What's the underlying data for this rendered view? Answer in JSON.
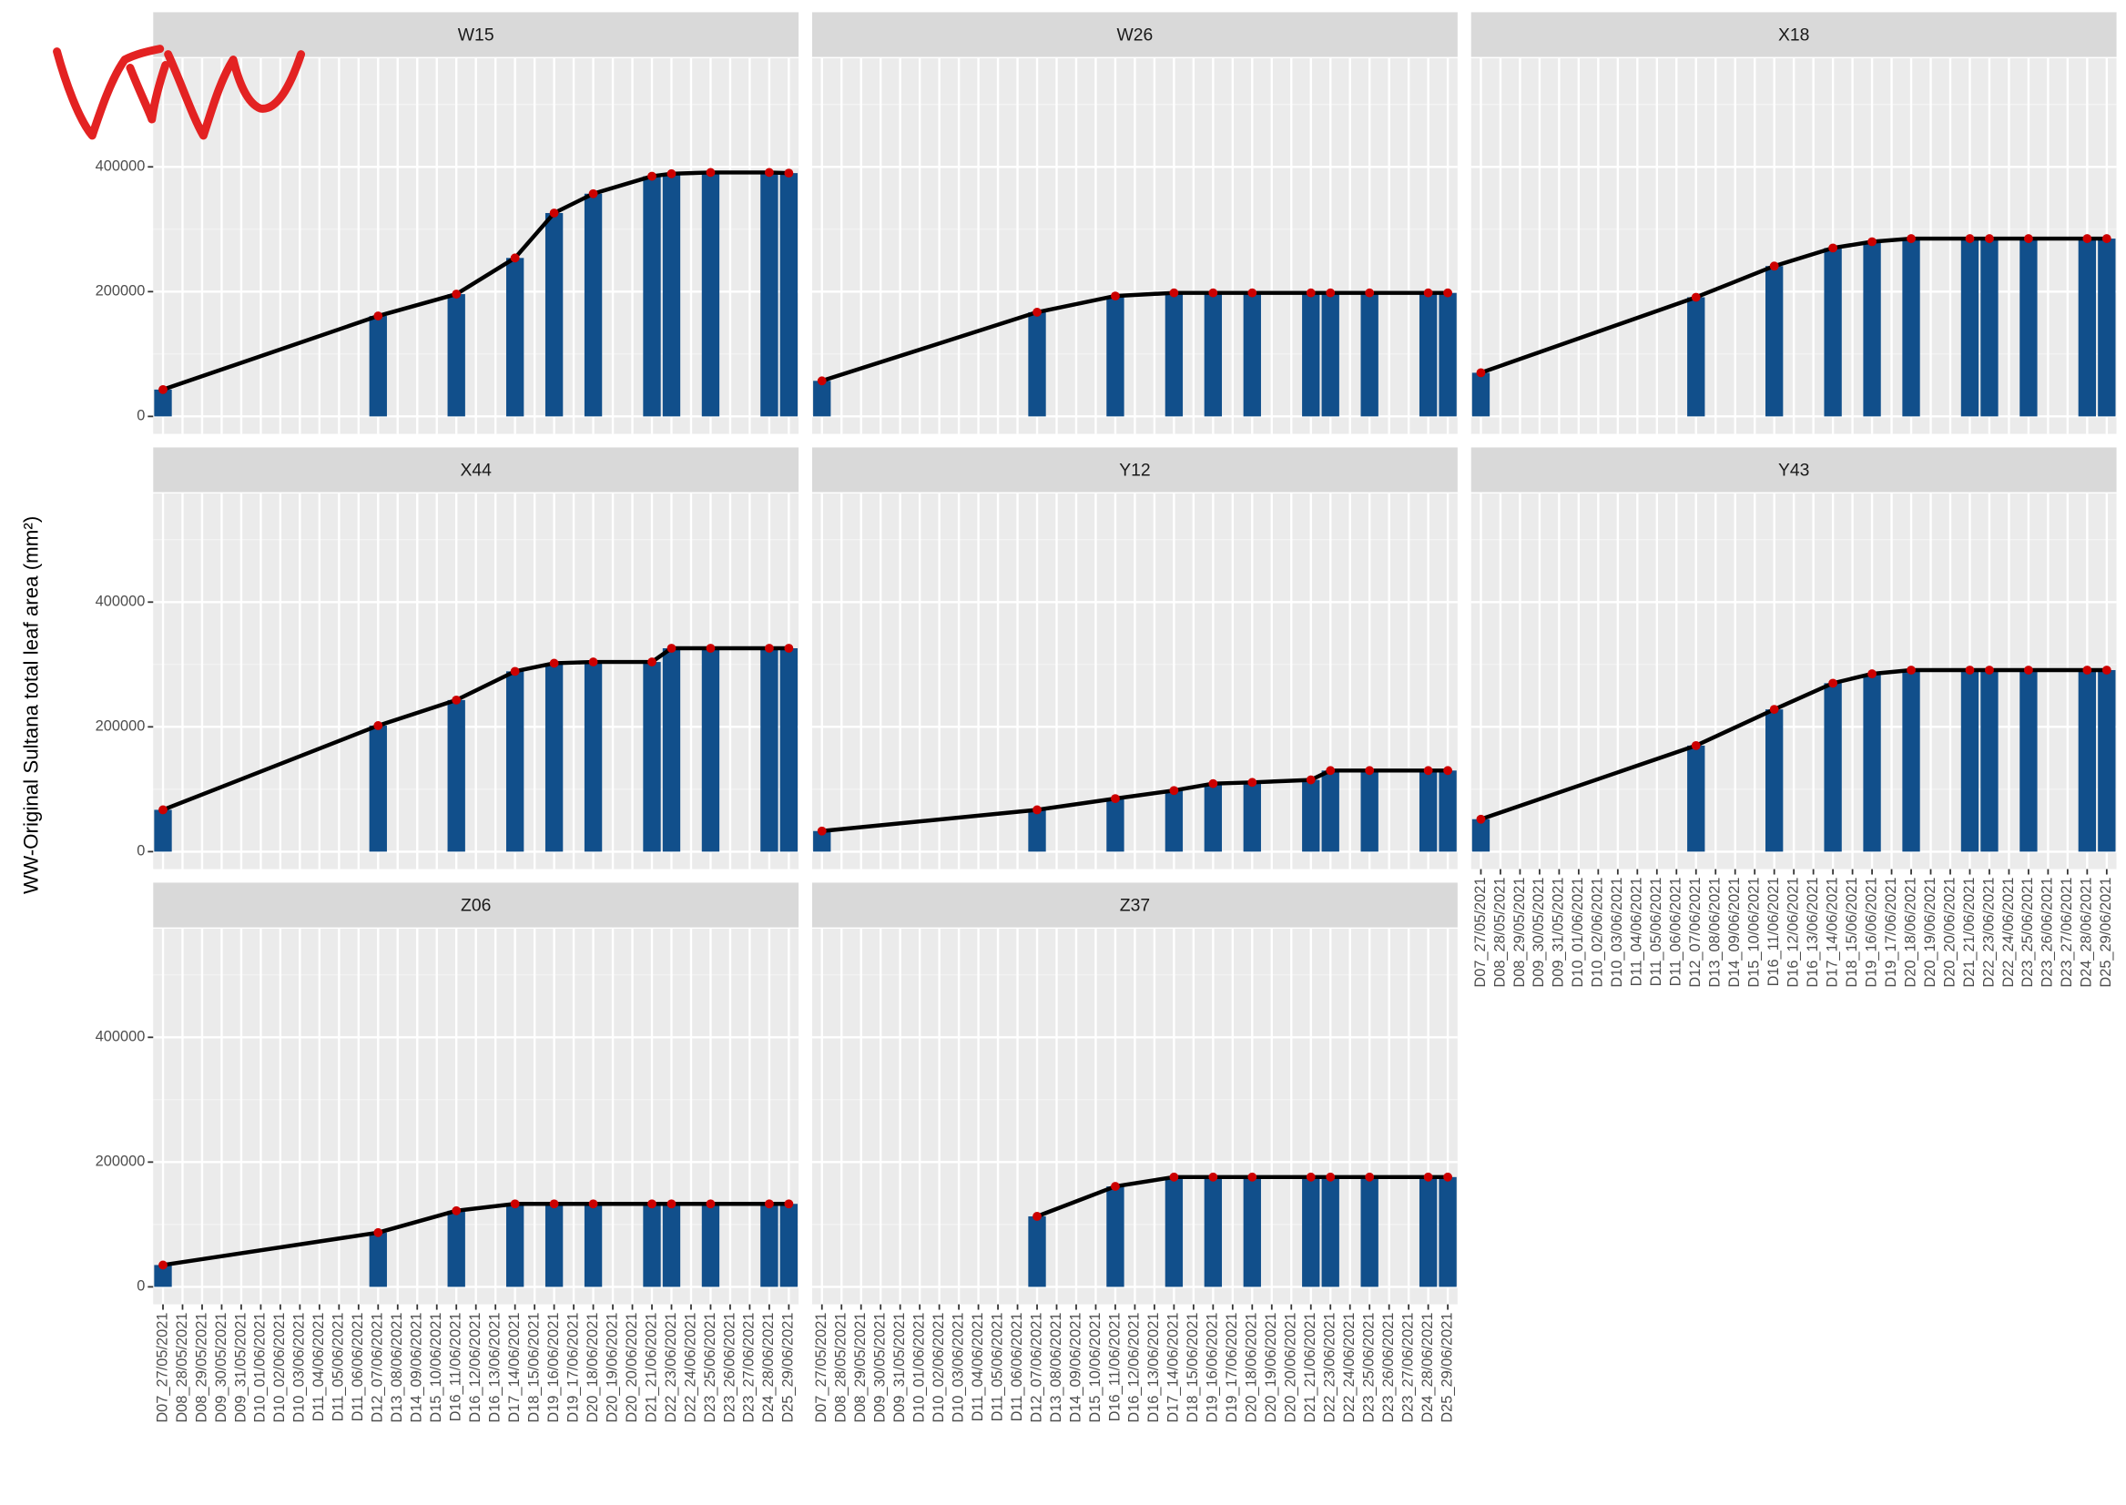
{
  "chart_data": {
    "type": "bar",
    "ylabel": "WW-Original Sultana total leaf area (mm²)",
    "categories": [
      "D07_27/05/2021",
      "D08_28/05/2021",
      "D08_29/05/2021",
      "D09_30/05/2021",
      "D09_31/05/2021",
      "D10_01/06/2021",
      "D10_02/06/2021",
      "D10_03/06/2021",
      "D11_04/06/2021",
      "D11_05/06/2021",
      "D11_06/06/2021",
      "D12_07/06/2021",
      "D13_08/06/2021",
      "D14_09/06/2021",
      "D15_10/06/2021",
      "D16_11/06/2021",
      "D16_12/06/2021",
      "D16_13/06/2021",
      "D17_14/06/2021",
      "D18_15/06/2021",
      "D19_16/06/2021",
      "D19_17/06/2021",
      "D20_18/06/2021",
      "D20_19/06/2021",
      "D20_20/06/2021",
      "D21_21/06/2021",
      "D22_23/06/2021",
      "D22_24/06/2021",
      "D23_25/06/2021",
      "D23_26/06/2021",
      "D23_27/06/2021",
      "D24_28/06/2021",
      "D25_29/06/2021"
    ],
    "facets": [
      {
        "title": "W15",
        "values": [
          43000,
          null,
          null,
          null,
          null,
          null,
          null,
          null,
          null,
          null,
          null,
          161000,
          null,
          null,
          null,
          196000,
          null,
          null,
          254000,
          null,
          326000,
          null,
          357000,
          null,
          null,
          385000,
          389000,
          null,
          391000,
          null,
          null,
          391000,
          390000
        ]
      },
      {
        "title": "W26",
        "values": [
          57000,
          null,
          null,
          null,
          null,
          null,
          null,
          null,
          null,
          null,
          null,
          167000,
          null,
          null,
          null,
          193000,
          null,
          null,
          198000,
          null,
          198000,
          null,
          198000,
          null,
          null,
          198000,
          198000,
          null,
          198000,
          null,
          null,
          198000,
          198000
        ]
      },
      {
        "title": "X18",
        "values": [
          70000,
          null,
          null,
          null,
          null,
          null,
          null,
          null,
          null,
          null,
          null,
          191000,
          null,
          null,
          null,
          241000,
          null,
          null,
          270000,
          null,
          280000,
          null,
          285000,
          null,
          null,
          285000,
          285000,
          null,
          285000,
          null,
          null,
          285000,
          285000
        ]
      },
      {
        "title": "X44",
        "values": [
          67000,
          null,
          null,
          null,
          null,
          null,
          null,
          null,
          null,
          null,
          null,
          202000,
          null,
          null,
          null,
          243000,
          null,
          null,
          289000,
          null,
          302000,
          null,
          304000,
          null,
          null,
          304000,
          326000,
          null,
          326000,
          null,
          null,
          326000,
          326000
        ]
      },
      {
        "title": "Y12",
        "values": [
          33000,
          null,
          null,
          null,
          null,
          null,
          null,
          null,
          null,
          null,
          null,
          67000,
          null,
          null,
          null,
          85000,
          null,
          null,
          98000,
          null,
          109000,
          null,
          111000,
          null,
          null,
          115000,
          130000,
          null,
          130000,
          null,
          null,
          130000,
          130000
        ]
      },
      {
        "title": "Y43",
        "values": [
          52000,
          null,
          null,
          null,
          null,
          null,
          null,
          null,
          null,
          null,
          null,
          170000,
          null,
          null,
          null,
          228000,
          null,
          null,
          270000,
          null,
          285000,
          null,
          291000,
          null,
          null,
          291000,
          291000,
          null,
          291000,
          null,
          null,
          291000,
          291000
        ]
      },
      {
        "title": "Z06",
        "values": [
          35000,
          null,
          null,
          null,
          null,
          null,
          null,
          null,
          null,
          null,
          null,
          87000,
          null,
          null,
          null,
          122000,
          null,
          null,
          133000,
          null,
          133000,
          null,
          133000,
          null,
          null,
          133000,
          133000,
          null,
          133000,
          null,
          null,
          133000,
          133000
        ]
      },
      {
        "title": "Z37",
        "values": [
          null,
          null,
          null,
          null,
          null,
          null,
          null,
          null,
          null,
          null,
          null,
          113000,
          null,
          null,
          null,
          161000,
          null,
          null,
          176000,
          null,
          176000,
          null,
          176000,
          null,
          null,
          176000,
          176000,
          null,
          176000,
          null,
          null,
          176000,
          176000
        ]
      }
    ],
    "ylim": [
      -28000,
      574000
    ],
    "yticks": [
      0,
      200000,
      400000
    ],
    "grid": true,
    "bar_color": "#114f8b",
    "point_color": "#cc0000",
    "line_color": "#000000"
  }
}
